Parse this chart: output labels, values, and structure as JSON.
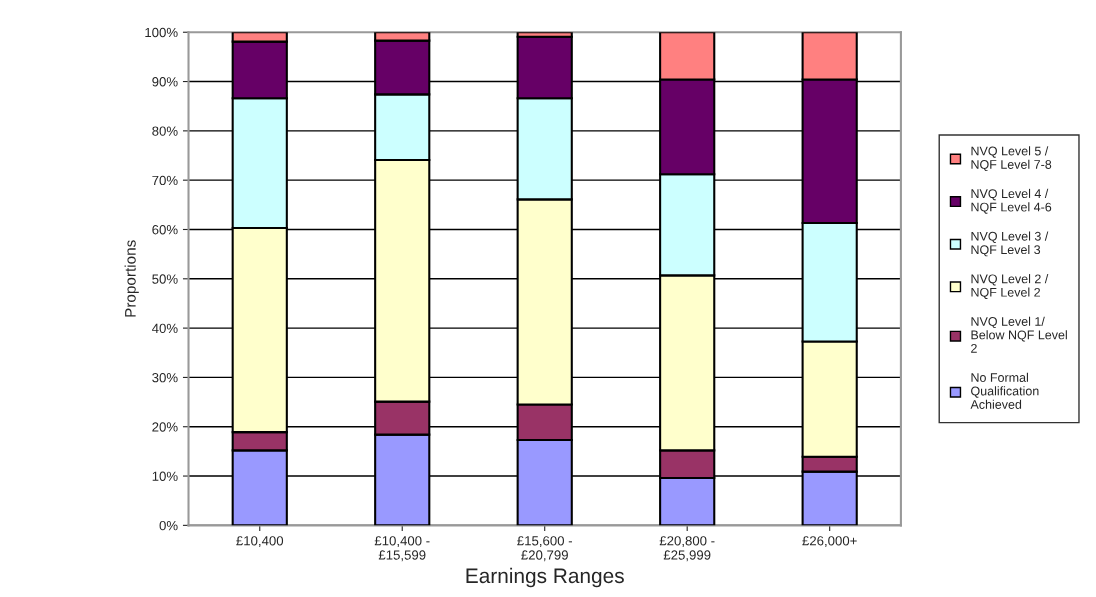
{
  "chart_data": {
    "type": "bar",
    "stacked": true,
    "xlabel": "Earnings Ranges",
    "ylabel": "Proportions",
    "categories": [
      "£10,400",
      "£10,400 -\n£15,599",
      "£15,600 -\n£20,799",
      "£20,800 -\n£25,999",
      "£26,000+"
    ],
    "series": [
      {
        "name": "No Formal\nQualification\nAchieved",
        "color": "#9999ff",
        "values": [
          15.2,
          18.4,
          17.3,
          9.6,
          10.9
        ]
      },
      {
        "name": "NVQ Level 1/\nBelow NQF Level\n2",
        "color": "#993366",
        "values": [
          3.7,
          6.7,
          7.2,
          5.6,
          3.0
        ]
      },
      {
        "name": "NVQ Level 2 /\nNQF Level 2",
        "color": "#ffffcc",
        "values": [
          41.4,
          49.0,
          41.6,
          35.5,
          23.4
        ]
      },
      {
        "name": "NVQ Level 3 /\nNQF Level 3",
        "color": "#ccffff",
        "values": [
          26.3,
          13.3,
          20.5,
          20.5,
          24.0
        ]
      },
      {
        "name": "NVQ Level 4 /\nNQF Level 4-6",
        "color": "#660066",
        "values": [
          11.5,
          10.9,
          12.5,
          19.2,
          29.1
        ]
      },
      {
        "name": "NVQ Level 5 /\nNQF Level 7-8",
        "color": "#ff8080",
        "values": [
          1.9,
          1.7,
          0.9,
          9.6,
          9.6
        ]
      }
    ],
    "ylim": [
      0,
      100
    ],
    "yticks": [
      {
        "value": 0,
        "label": "0%"
      },
      {
        "value": 10,
        "label": "10%"
      },
      {
        "value": 20,
        "label": "20%"
      },
      {
        "value": 30,
        "label": "30%"
      },
      {
        "value": 40,
        "label": "40%"
      },
      {
        "value": 50,
        "label": "50%"
      },
      {
        "value": 60,
        "label": "60%"
      },
      {
        "value": 70,
        "label": "70%"
      },
      {
        "value": 80,
        "label": "80%"
      },
      {
        "value": 90,
        "label": "90%"
      },
      {
        "value": 100,
        "label": "100%"
      }
    ],
    "grid": "y",
    "legend": "right"
  }
}
